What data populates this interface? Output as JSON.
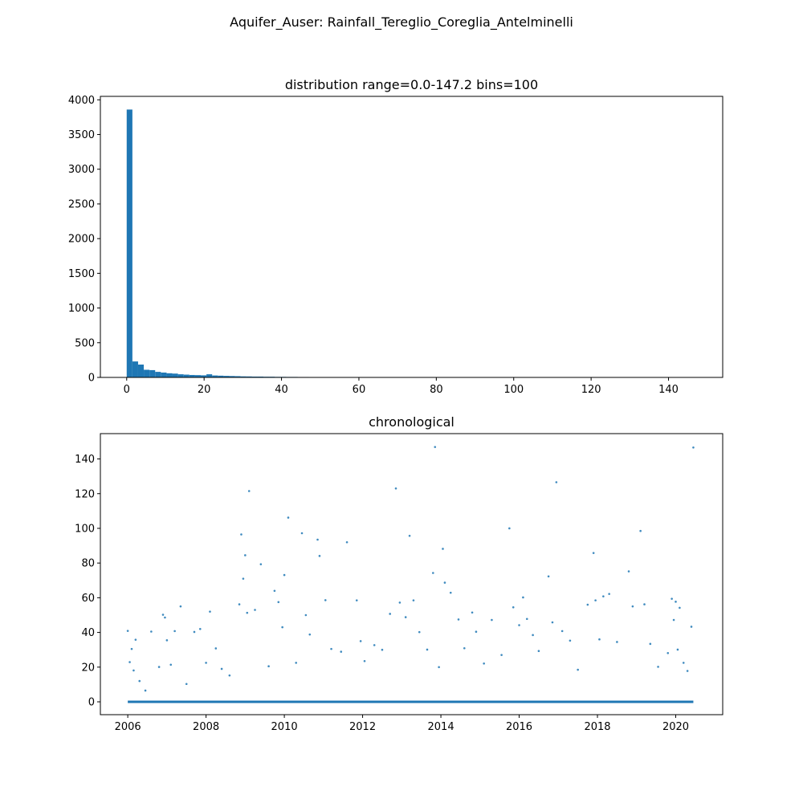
{
  "figure": {
    "suptitle": "Aquifer_Auser: Rainfall_Tereglio_Coreglia_Antelminelli"
  },
  "colors": {
    "series": "#1f77b4",
    "axis": "#000000",
    "background": "#ffffff"
  },
  "chart_data": [
    {
      "type": "bar",
      "title": "distribution range=0.0-147.2 bins=100",
      "xlabel": "",
      "ylabel": "",
      "bin_range": [
        0.0,
        147.2
      ],
      "bins": 100,
      "xlim": [
        -6.8,
        154.0
      ],
      "ylim": [
        0,
        4050
      ],
      "xticks": [
        0,
        20,
        40,
        60,
        80,
        100,
        120,
        140
      ],
      "yticks": [
        0,
        500,
        1000,
        1500,
        2000,
        2500,
        3000,
        3500,
        4000
      ],
      "xtick_labels": [
        "0",
        "20",
        "40",
        "60",
        "80",
        "100",
        "120",
        "140"
      ],
      "ytick_labels": [
        "0",
        "500",
        "1000",
        "1500",
        "2000",
        "2500",
        "3000",
        "3500",
        "4000"
      ],
      "counts": [
        3860,
        230,
        185,
        110,
        105,
        80,
        70,
        60,
        55,
        45,
        40,
        35,
        33,
        30,
        45,
        28,
        25,
        22,
        20,
        18,
        15,
        14,
        12,
        12,
        10,
        10,
        8,
        8,
        7,
        7,
        6,
        6,
        5,
        4,
        3,
        3,
        3,
        2,
        2,
        2,
        2,
        2,
        1,
        1,
        1,
        1,
        0,
        1,
        1,
        1,
        0,
        1,
        0,
        0,
        0,
        1,
        0,
        0,
        1,
        0,
        0,
        0,
        1,
        0,
        0,
        1,
        0,
        0,
        0,
        0,
        0,
        0,
        0,
        1,
        0,
        0,
        0,
        0,
        1,
        0,
        0,
        0,
        0,
        0,
        1,
        0,
        0,
        0,
        0,
        0,
        0,
        0,
        0,
        0,
        0,
        0,
        0,
        0,
        0,
        2
      ]
    },
    {
      "type": "scatter",
      "title": "chronological",
      "xlabel": "",
      "ylabel": "",
      "x_unit": "year",
      "xlim": [
        2005.3,
        2021.2
      ],
      "ylim": [
        -7.4,
        154.6
      ],
      "xticks": [
        2006,
        2008,
        2010,
        2012,
        2014,
        2016,
        2018,
        2020
      ],
      "yticks": [
        0,
        20,
        40,
        60,
        80,
        100,
        120,
        140
      ],
      "xtick_labels": [
        "2006",
        "2008",
        "2010",
        "2012",
        "2014",
        "2016",
        "2018",
        "2020"
      ],
      "ytick_labels": [
        "0",
        "20",
        "40",
        "60",
        "80",
        "100",
        "120",
        "140"
      ],
      "x": [
        2006.0,
        2006.05,
        2006.1,
        2006.15,
        2006.2,
        2006.3,
        2006.45,
        2006.6,
        2006.8,
        2006.9,
        2006.95,
        2007.0,
        2007.1,
        2007.2,
        2007.35,
        2007.5,
        2007.7,
        2007.85,
        2008.0,
        2008.1,
        2008.25,
        2008.4,
        2008.6,
        2008.85,
        2008.9,
        2008.95,
        2009.0,
        2009.05,
        2009.1,
        2009.25,
        2009.4,
        2009.6,
        2009.75,
        2009.85,
        2009.95,
        2010.0,
        2010.1,
        2010.3,
        2010.45,
        2010.55,
        2010.65,
        2010.85,
        2010.9,
        2011.05,
        2011.2,
        2011.45,
        2011.6,
        2011.85,
        2011.95,
        2012.05,
        2012.3,
        2012.5,
        2012.7,
        2012.85,
        2012.95,
        2013.1,
        2013.2,
        2013.3,
        2013.45,
        2013.65,
        2013.8,
        2013.85,
        2013.95,
        2014.05,
        2014.1,
        2014.25,
        2014.45,
        2014.6,
        2014.8,
        2014.9,
        2015.1,
        2015.3,
        2015.55,
        2015.75,
        2015.85,
        2016.0,
        2016.1,
        2016.2,
        2016.35,
        2016.5,
        2016.75,
        2016.85,
        2016.95,
        2017.1,
        2017.3,
        2017.5,
        2017.75,
        2017.9,
        2017.95,
        2018.05,
        2018.15,
        2018.3,
        2018.5,
        2018.8,
        2018.9,
        2019.1,
        2019.2,
        2019.35,
        2019.55,
        2019.8,
        2019.9,
        2019.95,
        2020.0,
        2020.05,
        2020.1,
        2020.2,
        2020.3,
        2020.4,
        2020.45
      ],
      "y": [
        40.9,
        22.9,
        30.5,
        18.1,
        35.8,
        12.0,
        6.5,
        40.5,
        20.1,
        50.2,
        48.6,
        35.5,
        21.4,
        40.8,
        55.0,
        10.3,
        40.3,
        42.0,
        22.5,
        52.0,
        30.8,
        19.0,
        15.2,
        56.2,
        96.5,
        71.0,
        84.5,
        51.3,
        121.5,
        53.0,
        79.3,
        20.5,
        64.0,
        57.5,
        43.0,
        73.1,
        106.2,
        22.5,
        97.2,
        50.0,
        38.8,
        93.5,
        84.1,
        58.6,
        30.5,
        28.9,
        92.0,
        58.5,
        35.0,
        23.5,
        32.7,
        30.0,
        50.7,
        123.0,
        57.2,
        48.8,
        95.7,
        58.5,
        40.2,
        30.1,
        74.3,
        146.9,
        20.0,
        88.2,
        68.7,
        62.9,
        47.5,
        30.9,
        51.5,
        40.4,
        22.1,
        47.2,
        27.0,
        100.0,
        54.5,
        44.2,
        60.2,
        47.8,
        38.5,
        29.3,
        72.3,
        45.8,
        126.6,
        40.8,
        35.3,
        18.5,
        56.0,
        85.8,
        58.5,
        36.0,
        60.8,
        62.2,
        34.5,
        75.2,
        55.0,
        98.5,
        56.2,
        33.4,
        20.2,
        28.1,
        59.4,
        47.2,
        57.7,
        30.1,
        54.2,
        22.5,
        17.8,
        43.3,
        146.6
      ]
    }
  ]
}
